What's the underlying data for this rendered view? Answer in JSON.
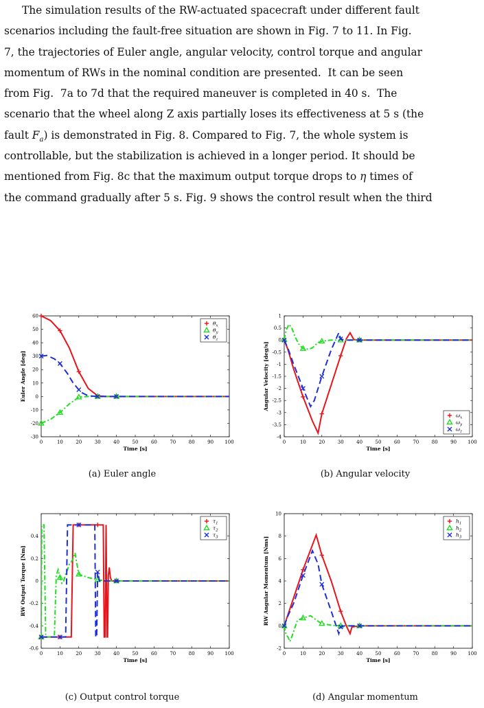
{
  "paragraph": [
    "The simulation results of the RW-actuated spacecraft under different fault",
    "scenarios including the fault-free situation are shown in Fig. 7 to 11. In Fig.",
    "7, the trajectories of Euler angle, angular velocity, control torque and angular",
    "momentum of RWs in the nominal condition are presented.  It can be seen",
    "from Fig.  7a to 7d that the required maneuver is completed in 40 s.  The",
    "scenario that the wheel along Z axis partially loses its effectiveness at 5 s (the",
    "fault F_a) is demonstrated in Fig. 8. Compared to Fig. 7, the whole system is",
    "controllable, but the stabilization is achieved in a longer period. It should be",
    "mentioned from Fig. 8c that the maximum output torque drops to η times of",
    "the command gradually after 5 s. Fig. 9 shows the control result when the third"
  ],
  "colors": {
    "s1": "#e8141b",
    "s2": "#22dd22",
    "s3": "#1f2fd6"
  },
  "chart_data": [
    {
      "id": "a",
      "type": "line",
      "caption": "(a) Euler angle",
      "xlabel": "Time [s]",
      "ylabel": "Euler Angle [deg]",
      "xlim": [
        0,
        100
      ],
      "ylim": [
        -30,
        60
      ],
      "xticks": [
        0,
        10,
        20,
        30,
        40,
        50,
        60,
        70,
        80,
        90,
        100
      ],
      "yticks": [
        -30,
        -20,
        -10,
        0,
        10,
        20,
        30,
        40,
        50,
        60
      ],
      "legend": [
        "θx",
        "θy",
        "θz"
      ],
      "legend_position": "top-right",
      "series": [
        {
          "name": "θx",
          "x": [
            0,
            5,
            10,
            15,
            20,
            25,
            30,
            35,
            40,
            100
          ],
          "y": [
            60,
            56.5,
            49,
            36,
            18.5,
            6,
            0.5,
            0,
            0,
            0
          ]
        },
        {
          "name": "θy",
          "x": [
            0,
            5,
            10,
            15,
            20,
            25,
            30,
            35,
            40,
            100
          ],
          "y": [
            -20,
            -17,
            -12,
            -5.5,
            -0.5,
            0,
            0,
            0,
            0,
            0
          ]
        },
        {
          "name": "θz",
          "x": [
            0,
            3,
            7,
            10,
            14,
            17,
            20,
            22,
            25,
            30,
            40,
            100
          ],
          "y": [
            30,
            30.5,
            28,
            24.5,
            17,
            10,
            5,
            2.5,
            0.5,
            0,
            0,
            0
          ]
        }
      ]
    },
    {
      "id": "b",
      "type": "line",
      "caption": "(b) Angular velocity",
      "xlabel": "Time [s]",
      "ylabel": "Angular Velocity [deg/s]",
      "xlim": [
        0,
        100
      ],
      "ylim": [
        -4,
        1
      ],
      "xticks": [
        0,
        10,
        20,
        30,
        40,
        50,
        60,
        70,
        80,
        90,
        100
      ],
      "yticks": [
        -4,
        -3.5,
        -3,
        -2.5,
        -2,
        -1.5,
        -1,
        -0.5,
        0,
        0.5,
        1
      ],
      "legend": [
        "ωx",
        "ωy",
        "ωz"
      ],
      "legend_position": "bottom-right",
      "series": [
        {
          "name": "ωx",
          "x": [
            0,
            2,
            5,
            10,
            15,
            18,
            20,
            25,
            30,
            33,
            35,
            37,
            40,
            100
          ],
          "y": [
            0,
            -0.4,
            -1.2,
            -2.35,
            -3.35,
            -3.85,
            -3.05,
            -1.85,
            -0.65,
            0.05,
            0.3,
            0.02,
            0,
            0
          ]
        },
        {
          "name": "ωy",
          "x": [
            0,
            1,
            2.5,
            4,
            6,
            8,
            10,
            13,
            15,
            18,
            20,
            23,
            25,
            30,
            40,
            100
          ],
          "y": [
            0.02,
            0.4,
            0.65,
            0.5,
            0.1,
            -0.2,
            -0.35,
            -0.38,
            -0.32,
            -0.1,
            -0.05,
            -0.02,
            0,
            0,
            0,
            0
          ]
        },
        {
          "name": "ωz",
          "x": [
            0,
            2,
            5,
            10,
            14,
            16,
            20,
            25,
            29,
            30,
            32,
            35,
            40,
            100
          ],
          "y": [
            0,
            -0.35,
            -1.0,
            -2.0,
            -2.75,
            -2.5,
            -1.5,
            -0.4,
            0.3,
            0.05,
            0,
            0,
            0,
            0
          ]
        }
      ]
    },
    {
      "id": "c",
      "type": "line",
      "caption": "(c) Output control torque",
      "xlabel": "Time [s]",
      "ylabel": "RW Output Torque [Nm]",
      "xlim": [
        0,
        100
      ],
      "ylim": [
        -0.6,
        0.6
      ],
      "xticks": [
        0,
        10,
        20,
        30,
        40,
        50,
        60,
        70,
        80,
        90,
        100
      ],
      "yticks": [
        -0.6,
        -0.4,
        -0.2,
        0,
        0.2,
        0.4
      ],
      "legend": [
        "τ1",
        "τ2",
        "τ3"
      ],
      "legend_position": "top-right",
      "series": [
        {
          "name": "τ1",
          "x": [
            0,
            16,
            17,
            33,
            33.5,
            34,
            34.5,
            35,
            35.3,
            35.7,
            36.2,
            36.8,
            37.5,
            40,
            100
          ],
          "y": [
            -0.5,
            -0.5,
            0.5,
            0.5,
            -0.5,
            -0.5,
            0.5,
            -0.5,
            -0.5,
            0.05,
            0.12,
            0.03,
            0,
            0,
            0
          ]
        },
        {
          "name": "τ2",
          "x": [
            0,
            0.3,
            1.5,
            2.4,
            3,
            7,
            8,
            9,
            10,
            11,
            12,
            13,
            14,
            15,
            16,
            17,
            18,
            19,
            20,
            25,
            30,
            35,
            40,
            100
          ],
          "y": [
            -0.5,
            0.5,
            0.5,
            -0.5,
            -0.5,
            -0.5,
            0.05,
            0.1,
            0.03,
            -0.02,
            0,
            0.06,
            0.1,
            0.15,
            0.17,
            0.2,
            0.25,
            0.15,
            0.06,
            0.03,
            0.01,
            0,
            0,
            0
          ]
        },
        {
          "name": "τ3",
          "x": [
            0,
            13,
            14,
            28.5,
            29,
            29.5,
            30,
            31,
            100
          ],
          "y": [
            -0.5,
            -0.5,
            0.5,
            0.5,
            -0.5,
            -0.5,
            0.08,
            0,
            0
          ]
        }
      ]
    },
    {
      "id": "d",
      "type": "line",
      "caption": "(d) Angular momentum",
      "xlabel": "Time [s]",
      "ylabel": "RW Angular Momentum [Nms]",
      "xlim": [
        0,
        100
      ],
      "ylim": [
        -2,
        10
      ],
      "xticks": [
        0,
        10,
        20,
        30,
        40,
        50,
        60,
        70,
        80,
        90,
        100
      ],
      "yticks": [
        -2,
        0,
        2,
        4,
        6,
        8,
        10
      ],
      "legend": [
        "h1",
        "h2",
        "h3"
      ],
      "legend_position": "top-right",
      "series": [
        {
          "name": "h1",
          "x": [
            0,
            5,
            10,
            17,
            20,
            25,
            30,
            33,
            35,
            36,
            40,
            100
          ],
          "y": [
            0,
            2.5,
            5,
            8.1,
            6.3,
            4,
            1.3,
            0,
            -0.7,
            -0.1,
            0,
            0
          ]
        },
        {
          "name": "h2",
          "x": [
            0,
            1,
            2,
            3,
            4,
            5,
            7,
            10,
            14,
            18,
            20,
            25,
            30,
            40,
            100
          ],
          "y": [
            0,
            -0.8,
            -1.0,
            -1.4,
            -1.0,
            -0.5,
            0.5,
            0.7,
            0.9,
            0.4,
            0.2,
            0.05,
            0,
            0,
            0
          ]
        },
        {
          "name": "h3",
          "x": [
            0,
            2,
            5,
            10,
            15,
            18,
            20,
            25,
            29,
            30,
            32,
            40,
            100
          ],
          "y": [
            0,
            0.9,
            2,
            4.5,
            6.7,
            5.5,
            3.7,
            1.3,
            -0.7,
            -0.1,
            0,
            0,
            0
          ]
        }
      ]
    }
  ]
}
